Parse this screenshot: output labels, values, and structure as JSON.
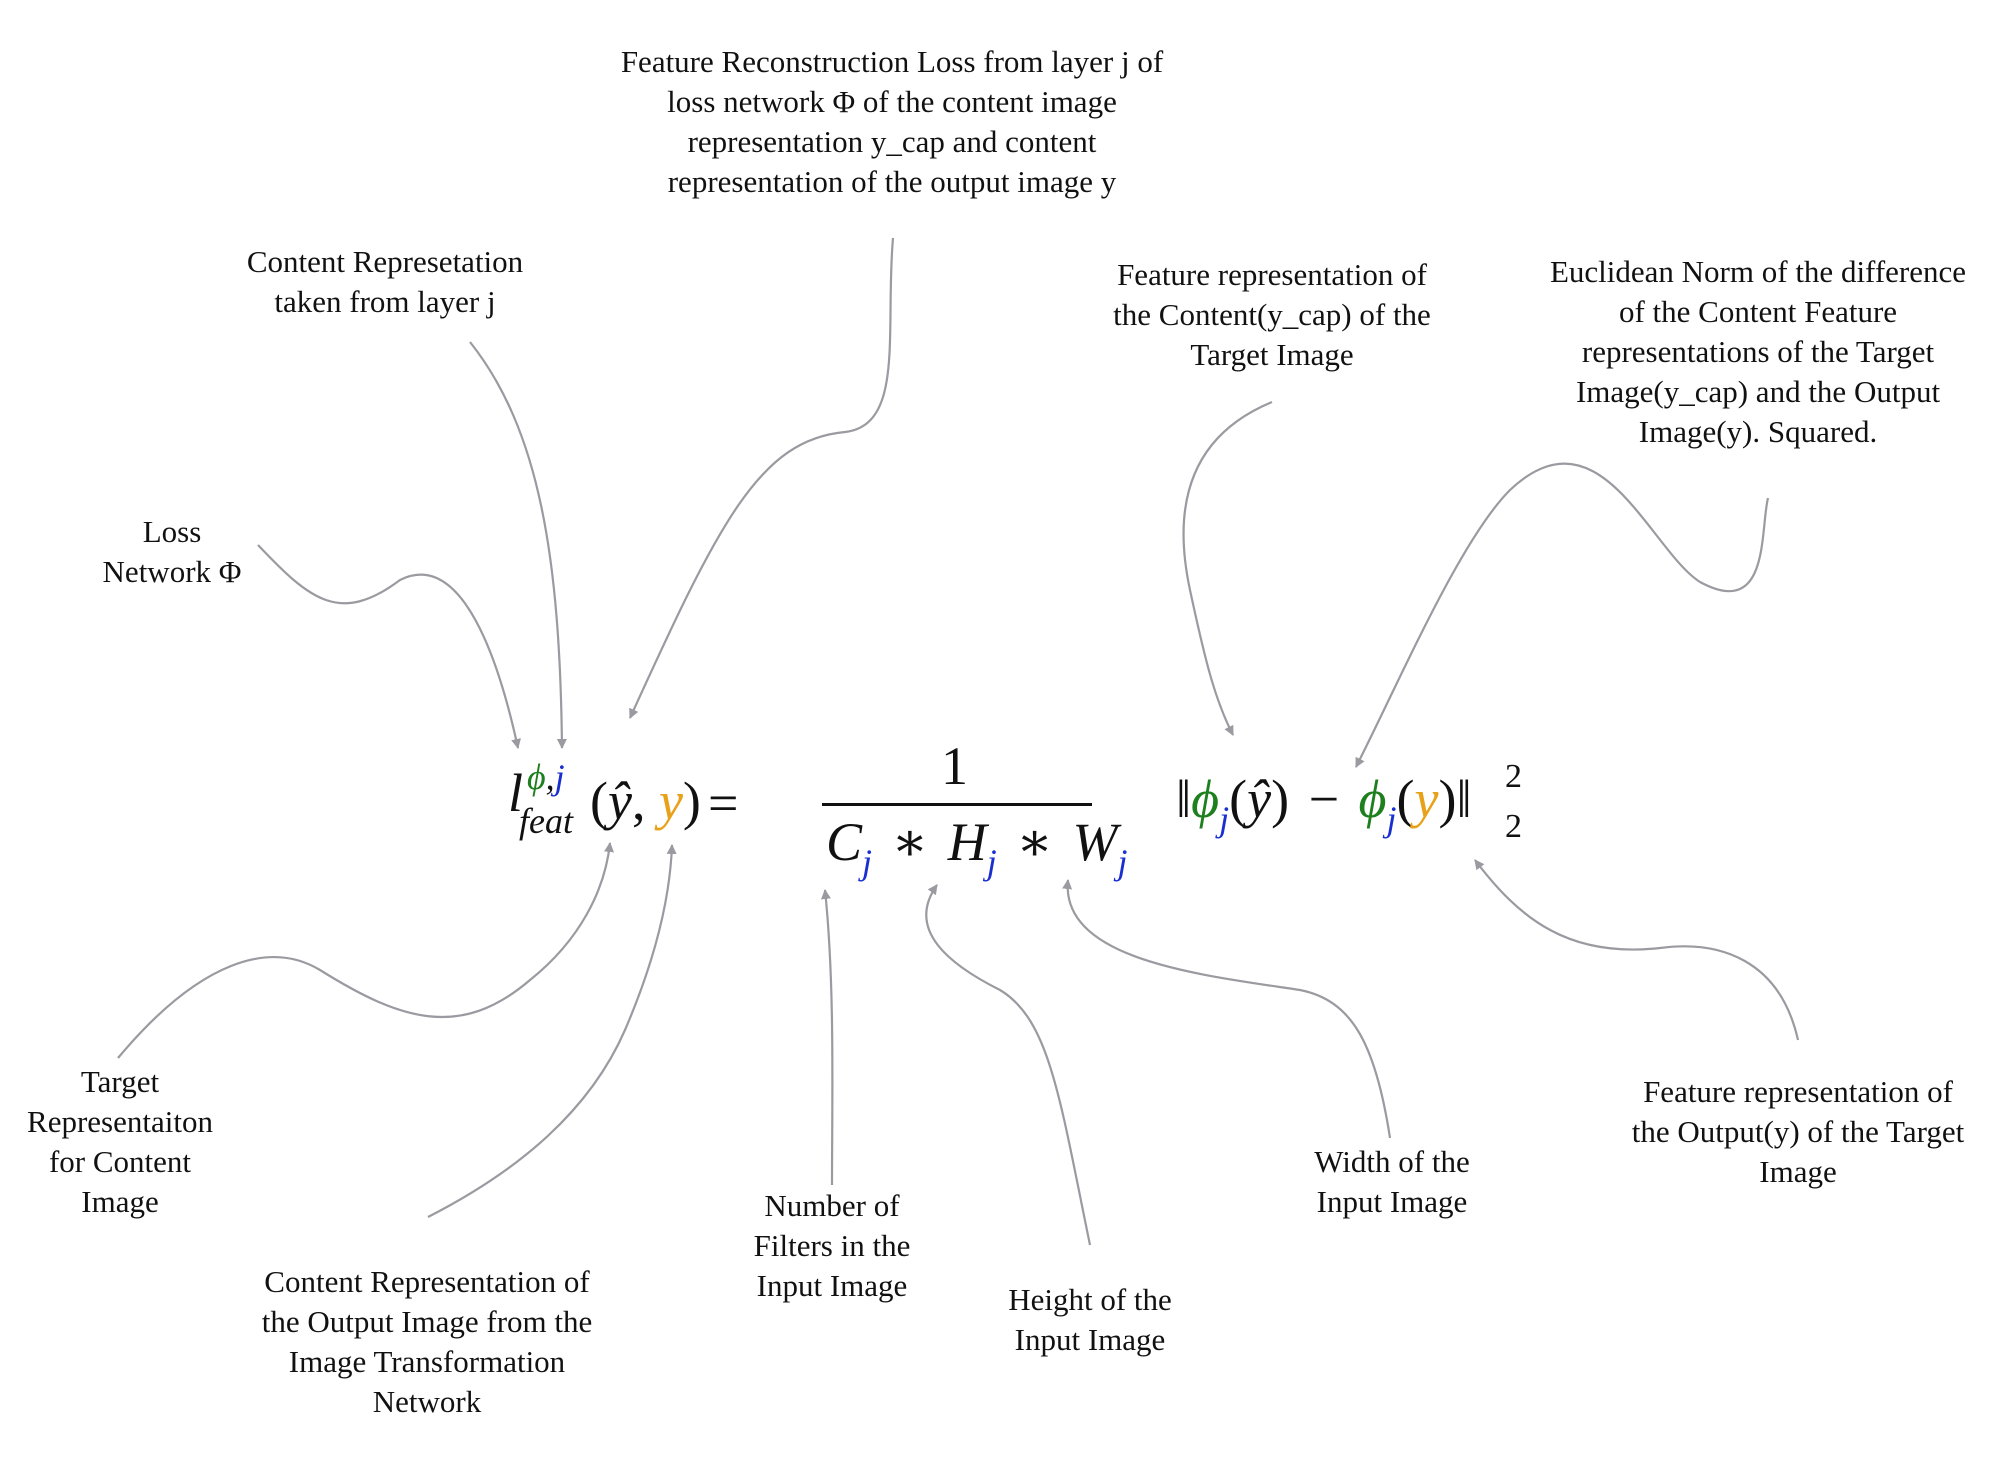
{
  "colors": {
    "green": "#1e7f1e",
    "blue": "#1a2fd0",
    "orange": "#e7a21a",
    "connector": "#9a9aa0",
    "text": "#111111"
  },
  "labels": {
    "feature_recon_loss": [
      "Feature Reconstruction Loss from layer j of",
      "loss network Φ of the content image",
      "representation y_cap and content",
      "representation of the output image y"
    ],
    "content_repr_layer": [
      "Content Represetation",
      "taken from layer j"
    ],
    "loss_network": [
      "Loss",
      "Network Φ"
    ],
    "feature_repr_target": [
      "Feature representation of",
      "the Content(y_cap) of the",
      "Target Image"
    ],
    "euclidean_norm": [
      "Euclidean Norm of the difference",
      "of the Content Feature",
      "representations of the Target",
      "Image(y_cap) and the Output",
      "Image(y). Squared."
    ],
    "target_repr": [
      "Target",
      "Representaiton",
      "for Content",
      "Image"
    ],
    "content_repr_output": [
      "Content Representation of",
      "the Output Image from the",
      "Image Transformation",
      "Network"
    ],
    "num_filters": [
      "Number of",
      "Filters in the",
      "Input Image"
    ],
    "height": [
      "Height of the",
      "Input Image"
    ],
    "width": [
      "Width of the",
      "Input Image"
    ],
    "feature_repr_output": [
      "Feature representation of",
      "the Output(y) of the Target",
      "Image"
    ]
  },
  "equation": {
    "lhs_symbol": "l",
    "lhs_sup_phi": "ϕ",
    "lhs_sup_comma": ",",
    "lhs_sup_j": "j",
    "lhs_sub": "feat",
    "open_paren": "(",
    "y_hat": "ŷ",
    "comma": ", ",
    "y": "y",
    "close_paren": ")",
    "equals": "=",
    "numerator": "1",
    "C": "C",
    "H": "H",
    "W": "W",
    "j": "j",
    "times": "∗",
    "norm": "‖",
    "phi": "ϕ",
    "minus": "−",
    "power": "2",
    "norm_sub": "2"
  }
}
